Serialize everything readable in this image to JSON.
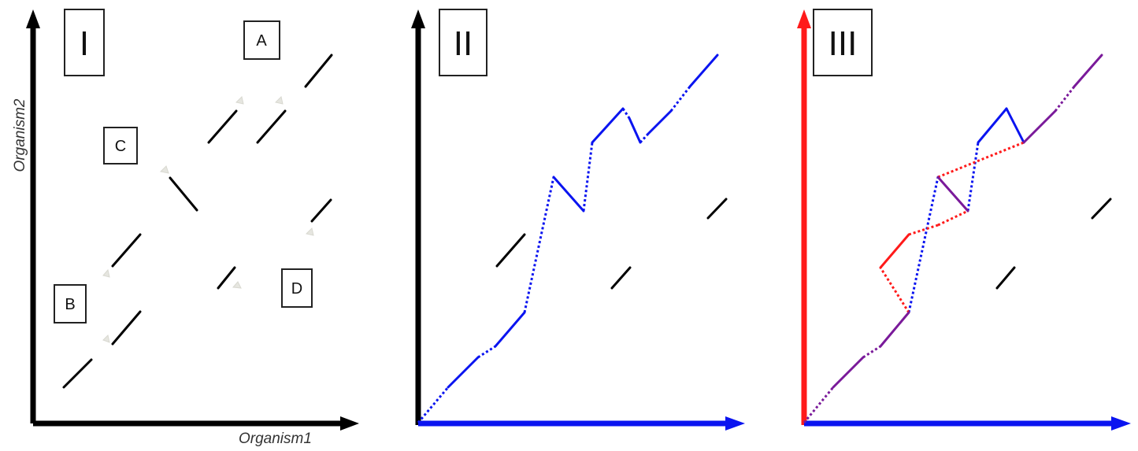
{
  "panels": [
    {
      "id": "panel-1",
      "numeral": "I"
    },
    {
      "id": "panel-2",
      "numeral": "II"
    },
    {
      "id": "panel-3",
      "numeral": "III"
    }
  ],
  "panel1_labels": {
    "a": "A",
    "b": "B",
    "c": "C",
    "d": "D"
  },
  "axes": {
    "x_title": "Organism1",
    "y_title": "Organism2"
  },
  "colors": {
    "black": "#000000",
    "blue": "#0a14f0",
    "red": "#ff1a1a",
    "purple": "#7a1a9a",
    "ghost_marker": "#e6e6e0"
  }
}
